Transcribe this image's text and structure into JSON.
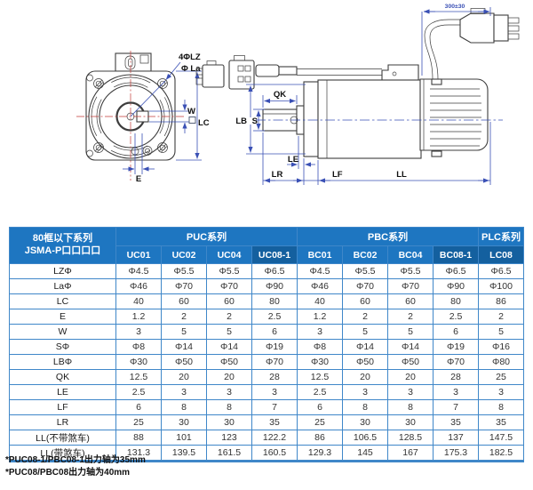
{
  "diagram": {
    "front_view": {
      "bolt_holes_label": "4ΦLZ",
      "pilot_diameter_label": "Φ La",
      "key_width_label": "W",
      "flange_size_label": "LC",
      "key_offset_label": "E"
    },
    "side_view": {
      "cable_length_label": "300±30",
      "key_length_label": "QK",
      "pilot_label": "LB",
      "shaft_label": "S",
      "le_label": "LE",
      "lr_label": "LR",
      "lf_label": "LF",
      "ll_label": "LL"
    }
  },
  "table": {
    "corner_header_line1": "80框以下系列",
    "corner_header_line2": "JSMA-P口口口口",
    "groups": [
      {
        "label": "PUC系列",
        "span": 4
      },
      {
        "label": "PBC系列",
        "span": 4
      },
      {
        "label": "PLC系列",
        "span": 1
      }
    ],
    "columns": [
      "UC01",
      "UC02",
      "UC04",
      "UC08-1",
      "BC01",
      "BC02",
      "BC04",
      "BC08-1",
      "LC08"
    ],
    "dark_columns": [
      "UC08-1",
      "BC08-1",
      "LC08"
    ],
    "rows": [
      {
        "label": "LZΦ",
        "values": [
          "Φ4.5",
          "Φ5.5",
          "Φ5.5",
          "Φ6.5",
          "Φ4.5",
          "Φ5.5",
          "Φ5.5",
          "Φ6.5",
          "Φ6.5"
        ]
      },
      {
        "label": "LaΦ",
        "values": [
          "Φ46",
          "Φ70",
          "Φ70",
          "Φ90",
          "Φ46",
          "Φ70",
          "Φ70",
          "Φ90",
          "Φ100"
        ]
      },
      {
        "label": "LC",
        "values": [
          "40",
          "60",
          "60",
          "80",
          "40",
          "60",
          "60",
          "80",
          "86"
        ]
      },
      {
        "label": "E",
        "values": [
          "1.2",
          "2",
          "2",
          "2.5",
          "1.2",
          "2",
          "2",
          "2.5",
          "2"
        ]
      },
      {
        "label": "W",
        "values": [
          "3",
          "5",
          "5",
          "6",
          "3",
          "5",
          "5",
          "6",
          "5"
        ]
      },
      {
        "label": "SΦ",
        "values": [
          "Φ8",
          "Φ14",
          "Φ14",
          "Φ19",
          "Φ8",
          "Φ14",
          "Φ14",
          "Φ19",
          "Φ16"
        ]
      },
      {
        "label": "LBΦ",
        "values": [
          "Φ30",
          "Φ50",
          "Φ50",
          "Φ70",
          "Φ30",
          "Φ50",
          "Φ50",
          "Φ70",
          "Φ80"
        ]
      },
      {
        "label": "QK",
        "values": [
          "12.5",
          "20",
          "20",
          "28",
          "12.5",
          "20",
          "20",
          "28",
          "25"
        ]
      },
      {
        "label": "LE",
        "values": [
          "2.5",
          "3",
          "3",
          "3",
          "2.5",
          "3",
          "3",
          "3",
          "3"
        ]
      },
      {
        "label": "LF",
        "values": [
          "6",
          "8",
          "8",
          "7",
          "6",
          "8",
          "8",
          "7",
          "8"
        ]
      },
      {
        "label": "LR",
        "values": [
          "25",
          "30",
          "30",
          "35",
          "25",
          "30",
          "30",
          "35",
          "35"
        ]
      },
      {
        "label": "LL(不带煞车)",
        "values": [
          "88",
          "101",
          "123",
          "122.2",
          "86",
          "106.5",
          "128.5",
          "137",
          "147.5"
        ]
      },
      {
        "label": "LL(带煞车)",
        "values": [
          "131.3",
          "139.5",
          "161.5",
          "160.5",
          "129.3",
          "145",
          "167",
          "175.3",
          "182.5"
        ]
      }
    ]
  },
  "footnotes": [
    "*PUC08-1/PBC08-1出力轴为35mm",
    "*PUC08/PBC08出力轴为40mm"
  ],
  "colors": {
    "header-bg": "#1e76c1",
    "header-dark-bg": "#14609f",
    "grid": "#3f87c9",
    "dim": "#3a50b5",
    "centerline": "#c23b38",
    "outline": "#3d3d3d"
  }
}
